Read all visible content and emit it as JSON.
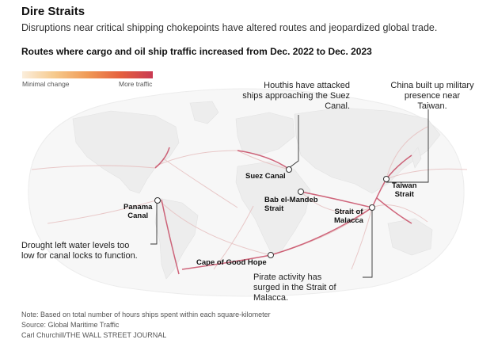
{
  "header": {
    "title": "Dire Straits",
    "subtitle": "Disruptions near critical shipping chokepoints have altered routes and jeopardized global trade.",
    "chart_title": "Routes where cargo and oil ship traffic increased from Dec. 2022 to Dec. 2023"
  },
  "legend": {
    "min_label": "Minimal change",
    "max_label": "More traffic",
    "colors": [
      "#fbeedc",
      "#f6c98c",
      "#f09a56",
      "#e5603e",
      "#c93a52"
    ]
  },
  "chokepoints": {
    "suez": "Suez Canal",
    "bab_1": "Bab el-Mandeb",
    "bab_2": "Strait",
    "panama_1": "Panama",
    "panama_2": "Canal",
    "malacca_1": "Strait of",
    "malacca_2": "Malacca",
    "taiwan_1": "Taiwan",
    "taiwan_2": "Strait",
    "good_hope": "Cape of Good Hope"
  },
  "annotations": {
    "houthis": [
      "Houthis have attacked",
      "ships approaching the Suez",
      "Canal."
    ],
    "china": [
      "China built up military",
      "presence near",
      "Taiwan."
    ],
    "drought": [
      "Drought left water levels too",
      "low for canal locks to function."
    ],
    "pirate": [
      "Pirate activity has",
      "surged in the Strait of",
      "Malacca."
    ]
  },
  "footer": {
    "note": "Note: Based on total number of hours ships spent within each square-kilometer",
    "source": "Source: Global Maritime Traffic",
    "credit": "Carl Churchill/THE WALL STREET JOURNAL"
  },
  "colors": {
    "land": "#f1f1f1",
    "ocean": "#ffffff",
    "route_light": "#e7c3c3",
    "route_heavy": "#c23552",
    "leader": "#333333"
  }
}
